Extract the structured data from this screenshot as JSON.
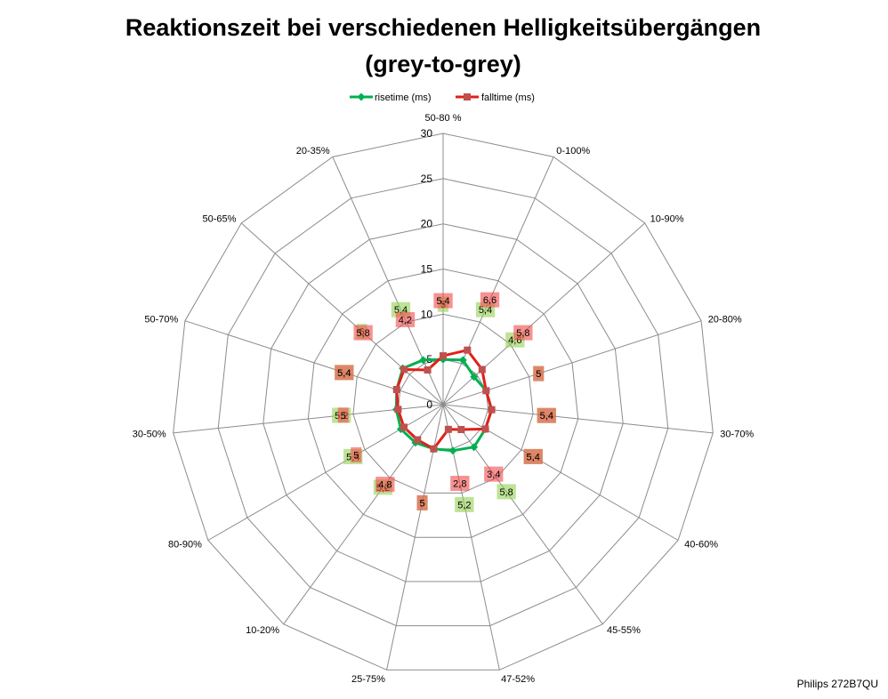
{
  "chart_data": {
    "type": "radar",
    "title": [
      "Reaktionszeit bei verschiedenen Helligkeitsübergängen",
      "(grey-to-grey)"
    ],
    "categories": [
      "50-80 %",
      "0-100%",
      "10-90%",
      "20-80%",
      "30-70%",
      "40-60%",
      "45-55%",
      "47-52%",
      "25-75%",
      "10-20%",
      "80-90%",
      "30-50%",
      "50-70%",
      "50-65%",
      "20-35%"
    ],
    "series": [
      {
        "name": "risetime (ms)",
        "color": "#00b050",
        "marker": "diamond",
        "marker_color": "#00b050",
        "label_fill": "#92d050",
        "values": [
          5,
          5.4,
          4.6,
          5,
          5.4,
          5.4,
          5.8,
          5.2,
          5,
          5.2,
          5.4,
          5.2,
          5.4,
          6,
          5.4
        ]
      },
      {
        "name": "falltime (ms)",
        "color": "#e0201b",
        "marker": "square",
        "marker_color": "#c0504d",
        "label_fill": "#f24a4a",
        "values": [
          5.4,
          6.6,
          5.8,
          5,
          5.4,
          5.4,
          3.4,
          2.8,
          5,
          4.8,
          5,
          5,
          5.4,
          5.8,
          4.2
        ]
      }
    ],
    "r_axis": {
      "min": 0,
      "max": 30,
      "ticks": [
        0,
        5,
        10,
        15,
        20,
        25,
        30
      ]
    },
    "data_labels": true,
    "decimal_separator": ",",
    "gridlines": true,
    "grid_color": "#8c8c8c",
    "legend_position": "top"
  },
  "caption": "Philips 272B7QU"
}
